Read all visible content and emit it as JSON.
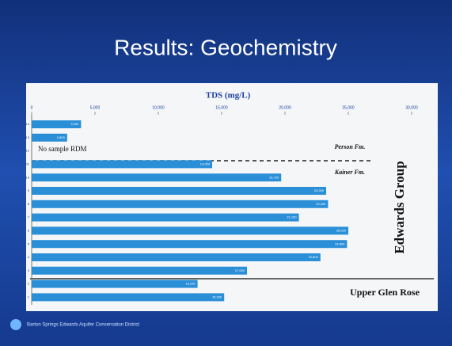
{
  "chart_data": {
    "type": "bar",
    "orientation": "horizontal",
    "slide_title": "Results: Geochemistry",
    "title": "TDS (mg/L)",
    "categories": [
      "14",
      "13",
      "12",
      "11",
      "10",
      "9",
      "8",
      "7",
      "6",
      "5",
      "4",
      "3",
      "2",
      "1"
    ],
    "values": [
      3900,
      2800,
      null,
      14250,
      19700,
      23250,
      23400,
      21100,
      25000,
      24900,
      22800,
      17000,
      13100,
      15200
    ],
    "value_labels": [
      "3,900",
      "2,800",
      null,
      "14,250",
      "19,700",
      "23,250",
      "23,400",
      "21,100",
      "25,000",
      "24,900",
      "22,800",
      "17,000",
      "13,100",
      "15,200"
    ],
    "color": "#2b8fd8",
    "xlim": [
      0,
      30000
    ],
    "xticks": [
      0,
      {
        "value": 5000,
        "label": "5,000"
      },
      {
        "value": 10000,
        "label": "10,000"
      },
      {
        "value": 15000,
        "label": "15,000"
      },
      {
        "value": 20000,
        "label": "20,000"
      },
      {
        "value": 25000,
        "label": "25,000"
      },
      {
        "value": 30000,
        "label": "30,000"
      }
    ],
    "annotations": {
      "no_sample": "No sample RDM",
      "person": "Person Fm.",
      "kainer": "Kainer Fm.",
      "edwards": "Edwards Group",
      "glen_rose": "Upper Glen Rose"
    },
    "footer": "Barton Springs Edwards Aquifer Conservation District"
  }
}
